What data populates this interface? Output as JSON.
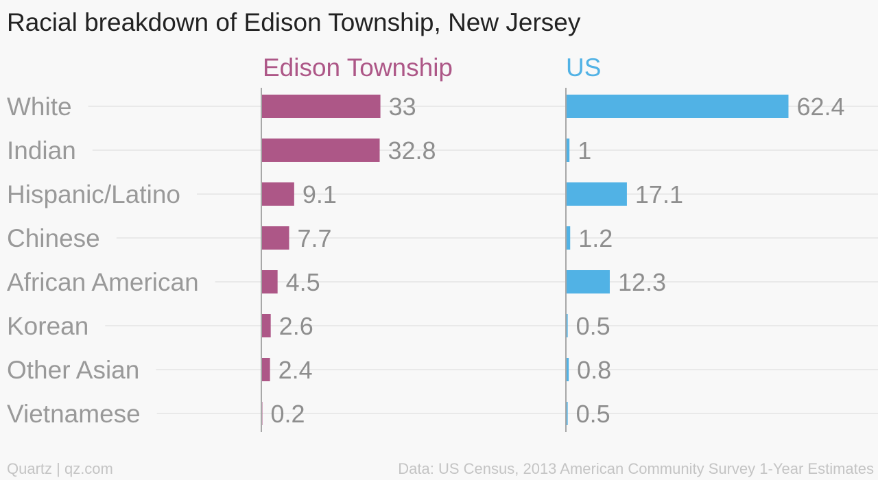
{
  "title": "Racial breakdown of Edison Township, New Jersey",
  "footer": {
    "source_left": "Quartz | qz.com",
    "source_right": "Data: US Census, 2013 American Community Survey 1-Year Estimates"
  },
  "chart_data": {
    "type": "bar",
    "orientation": "horizontal",
    "title": "Racial breakdown of Edison Township, New Jersey",
    "xlabel": "",
    "ylabel": "",
    "grid": true,
    "categories": [
      "White",
      "Indian",
      "Hispanic/Latino",
      "Chinese",
      "African American",
      "Korean",
      "Other Asian",
      "Vietnamese"
    ],
    "series": [
      {
        "name": "Edison Township",
        "color": "#ad5787",
        "values": [
          33,
          32.8,
          9.1,
          7.7,
          4.5,
          2.6,
          2.4,
          0.2
        ],
        "labels": [
          "33",
          "32.8",
          "9.1",
          "7.7",
          "4.5",
          "2.6",
          "2.4",
          "0.2"
        ]
      },
      {
        "name": "US",
        "color": "#51b2e5",
        "values": [
          62.4,
          1,
          17.1,
          1.2,
          12.3,
          0.5,
          0.8,
          0.5
        ],
        "labels": [
          "62.4",
          "1",
          "17.1",
          "1.2",
          "12.3",
          "0.5",
          "0.8",
          "0.5"
        ]
      }
    ]
  }
}
